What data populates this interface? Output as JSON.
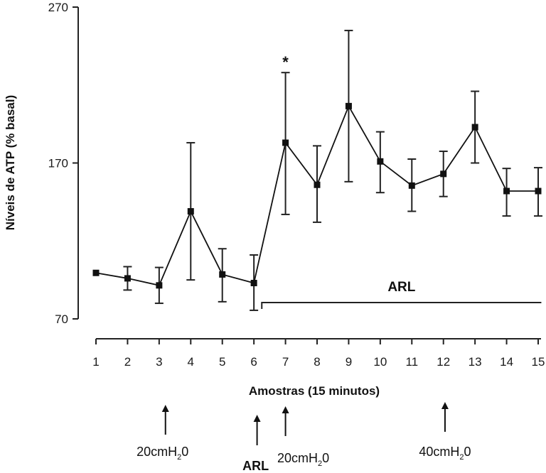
{
  "chart_data": {
    "type": "line",
    "title": "",
    "xlabel": "Amostras (15 minutos)",
    "ylabel": "Níveis de ATP (% basal)",
    "x": [
      1,
      2,
      3,
      4,
      5,
      6,
      7,
      8,
      9,
      10,
      11,
      12,
      13,
      14,
      15
    ],
    "x_tick_labels": [
      "1",
      "2",
      "3",
      "4",
      "5",
      "6",
      "7",
      "8",
      "9",
      "10",
      "11",
      "12",
      "13",
      "14",
      "15"
    ],
    "xlim": [
      1,
      15
    ],
    "ylim": [
      70,
      270
    ],
    "y_ticks": [
      70,
      170,
      270
    ],
    "y_tick_labels": [
      "70",
      "170",
      "270"
    ],
    "grid": false,
    "series": [
      {
        "name": "ATP",
        "marker": "square",
        "color": "#111111",
        "values": [
          99.5,
          96,
          91.5,
          139,
          98.5,
          93,
          183,
          156,
          206.5,
          171,
          155.5,
          163,
          193,
          152,
          152
        ],
        "error_upper": [
          null,
          103.5,
          103,
          183,
          115,
          111,
          228,
          181,
          255,
          190,
          172.5,
          177.5,
          216,
          166.5,
          167
        ],
        "error_lower": [
          null,
          88.5,
          80,
          95,
          81,
          75.5,
          137,
          132,
          158,
          151,
          139,
          148.5,
          170,
          136,
          136
        ]
      }
    ],
    "annotations": {
      "significance": {
        "x": 7,
        "y": 235,
        "text": "*"
      },
      "arl_bracket": {
        "label": "ARL",
        "x_start": 6.25,
        "x_end": 15.1,
        "y": 80
      },
      "arrows": [
        {
          "x": 3.2,
          "label_main": "20cmH",
          "label_sub": "2",
          "label_end": "0",
          "bold": false
        },
        {
          "x": 6.1,
          "label_main": "ARL",
          "label_sub": "",
          "label_end": "",
          "bold": true
        },
        {
          "x": 7.0,
          "label_main": "20cmH",
          "label_sub": "2",
          "label_end": "0",
          "bold": false
        },
        {
          "x": 12.05,
          "label_main": "40cmH",
          "label_sub": "2",
          "label_end": "0",
          "bold": false
        }
      ]
    }
  }
}
